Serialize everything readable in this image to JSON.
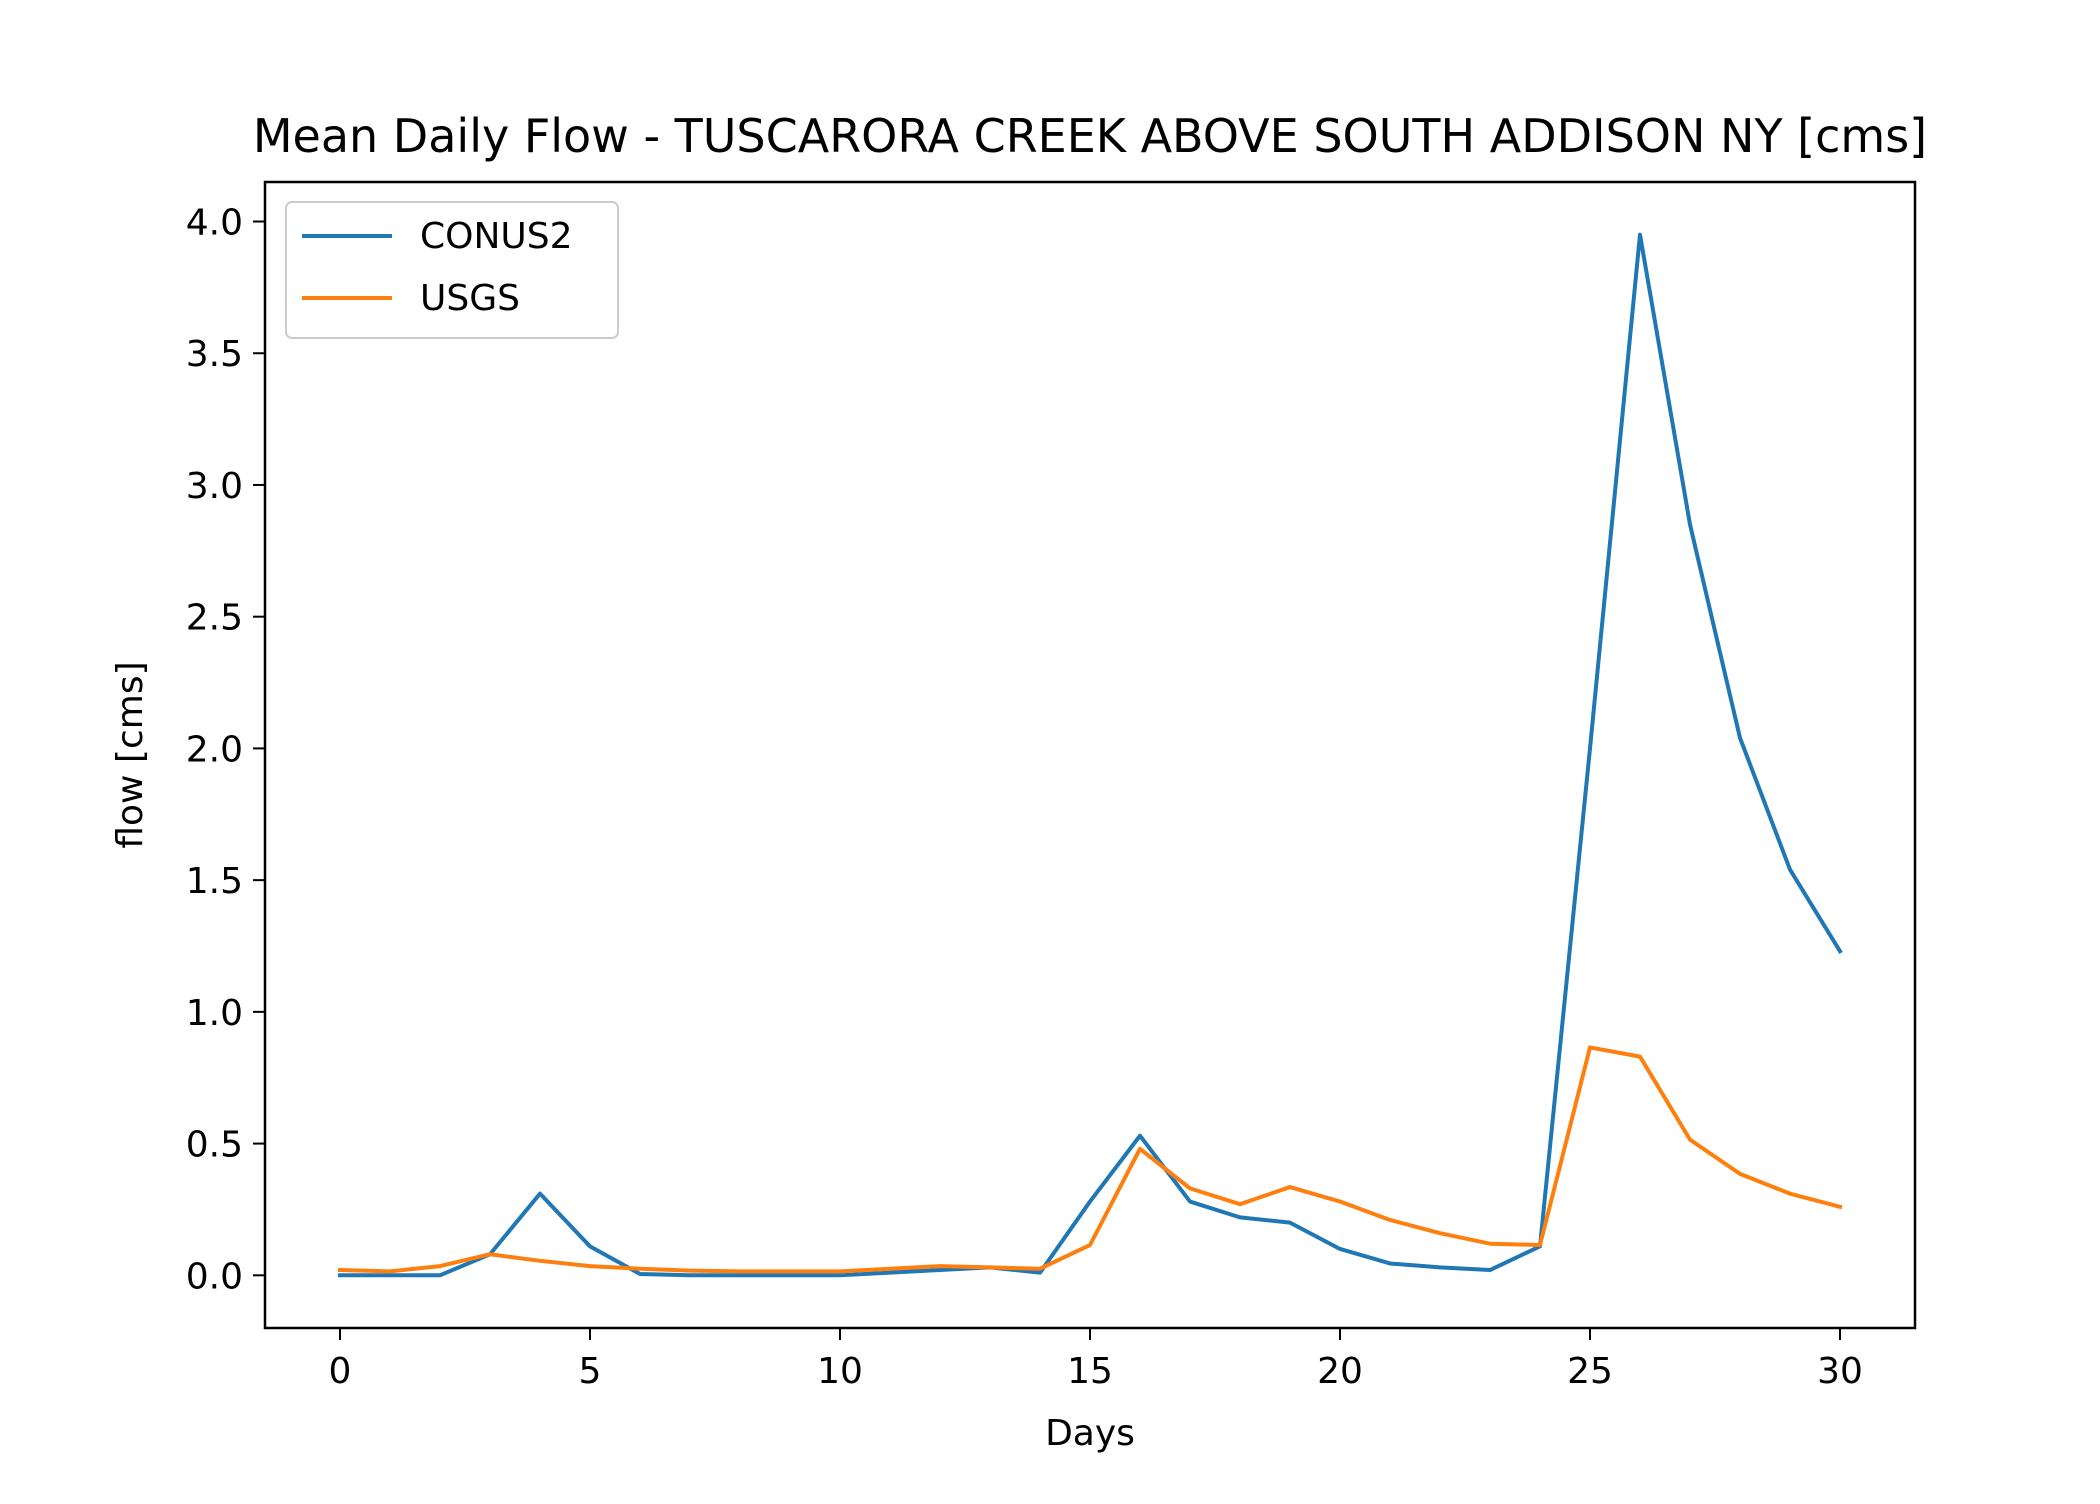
{
  "chart_data": {
    "type": "line",
    "title": "Mean Daily Flow - TUSCARORA CREEK ABOVE SOUTH ADDISON NY [cms]",
    "xlabel": "Days",
    "ylabel": "flow [cms]",
    "xlim": [
      -1.5,
      31.5
    ],
    "ylim": [
      -0.2,
      4.15
    ],
    "xticks": [
      0,
      5,
      10,
      15,
      20,
      25,
      30
    ],
    "yticks": [
      0.0,
      0.5,
      1.0,
      1.5,
      2.0,
      2.5,
      3.0,
      3.5,
      4.0
    ],
    "xtick_labels": [
      "0",
      "5",
      "10",
      "15",
      "20",
      "25",
      "30"
    ],
    "ytick_labels": [
      "0.0",
      "0.5",
      "1.0",
      "1.5",
      "2.0",
      "2.5",
      "3.0",
      "3.5",
      "4.0"
    ],
    "grid": false,
    "legend_position": "upper-left",
    "x": [
      0,
      1,
      2,
      3,
      4,
      5,
      6,
      7,
      8,
      9,
      10,
      11,
      12,
      13,
      14,
      15,
      16,
      17,
      18,
      19,
      20,
      21,
      22,
      23,
      24,
      25,
      26,
      27,
      28,
      29,
      30
    ],
    "series": [
      {
        "name": "CONUS2",
        "color": "#1f77b4",
        "values": [
          0.0,
          0.0,
          0.0,
          0.08,
          0.31,
          0.11,
          0.005,
          0.0,
          0.0,
          0.0,
          0.0,
          0.01,
          0.02,
          0.03,
          0.01,
          0.28,
          0.53,
          0.28,
          0.22,
          0.2,
          0.1,
          0.045,
          0.03,
          0.02,
          0.11,
          2.0,
          3.95,
          2.85,
          2.04,
          1.54,
          1.23
        ]
      },
      {
        "name": "USGS",
        "color": "#ff7f0e",
        "values": [
          0.02,
          0.015,
          0.035,
          0.08,
          0.055,
          0.035,
          0.025,
          0.018,
          0.015,
          0.015,
          0.015,
          0.025,
          0.035,
          0.03,
          0.025,
          0.115,
          0.48,
          0.33,
          0.27,
          0.335,
          0.28,
          0.21,
          0.16,
          0.12,
          0.115,
          0.865,
          0.83,
          0.515,
          0.385,
          0.31,
          0.26
        ]
      }
    ]
  }
}
